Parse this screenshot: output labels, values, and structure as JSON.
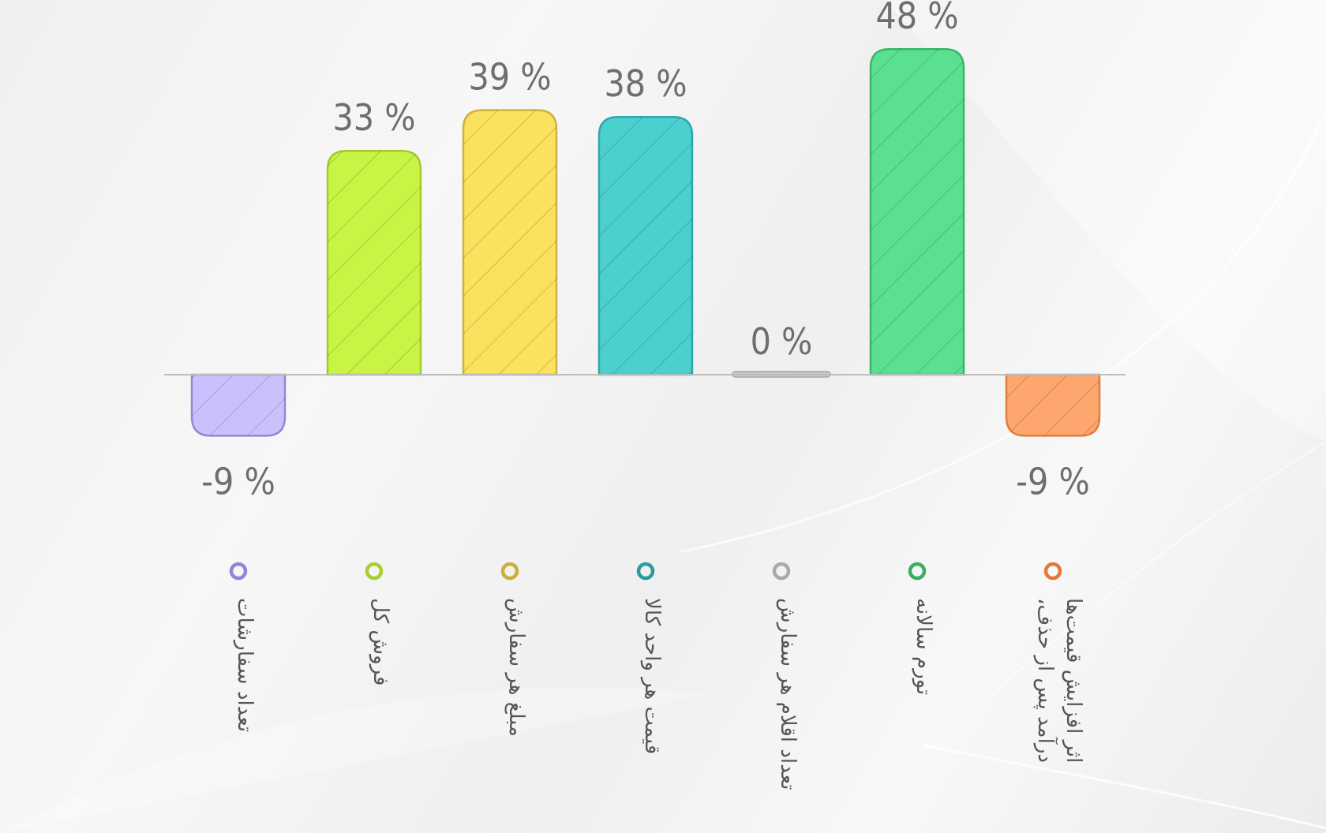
{
  "chart_data": {
    "type": "bar",
    "categories": [
      "تعداد سفارشات",
      "فروش کل",
      "مبلغ هر سفارش",
      "قیمت هر واحد کالا",
      "تعداد اقلام هر سفارش",
      "تورم سالانه",
      "درآمد پس از حذف اثر افزایش قیمت‌ها"
    ],
    "category_lines": [
      [
        "تعداد سفارشات"
      ],
      [
        "فروش کل"
      ],
      [
        "مبلغ هر سفارش"
      ],
      [
        "قیمت هر واحد کالا"
      ],
      [
        "تعداد اقلام هر سفارش"
      ],
      [
        "تورم سالانه"
      ],
      [
        "درآمد پس از حذف،",
        "اثر افزایش قیمت‌ها"
      ]
    ],
    "values": [
      -9,
      33,
      39,
      38,
      0,
      48,
      -9
    ],
    "value_labels": [
      "-9 %",
      "33 %",
      "39 %",
      "38 %",
      "0 %",
      "48 %",
      "-9 %"
    ],
    "unit": "%",
    "ylim": [
      -15,
      55
    ],
    "grid": false,
    "bar_style": "rounded, diagonal hatch",
    "fill_colors": [
      "#c9c1fb",
      "#c8f545",
      "#fce15e",
      "#4ccfcf",
      "#c8c8c8",
      "#5ae090",
      "#fda66e"
    ],
    "stroke_colors": [
      "#9488d6",
      "#a2ca2a",
      "#cfb23d",
      "#2fa8a9",
      "#a8a8a8",
      "#3cb56b",
      "#e27e3c"
    ],
    "marker_colors": [
      "#9683d7",
      "#a5cf31",
      "#cbae3b",
      "#2a9c9d",
      "#a9a9a9",
      "#3bae62",
      "#e6763a"
    ]
  }
}
